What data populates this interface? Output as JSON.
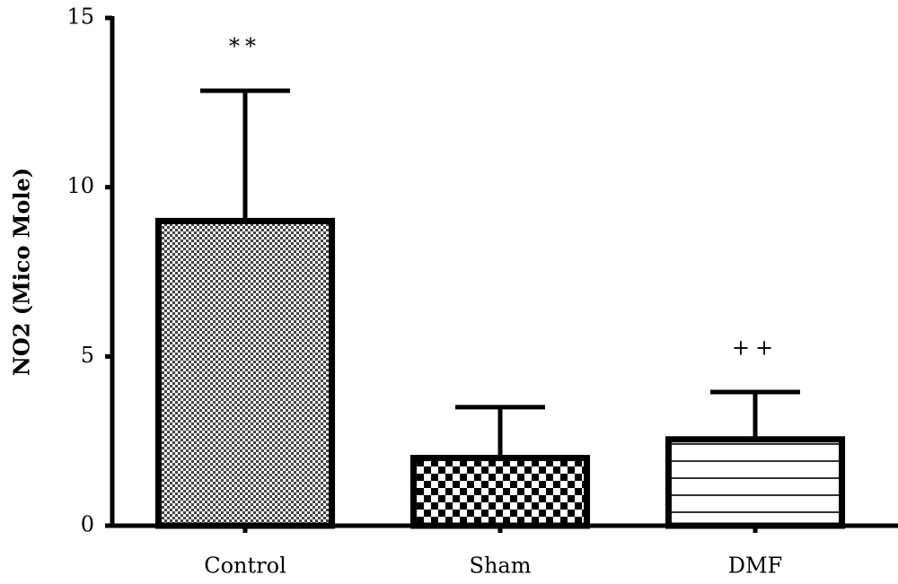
{
  "chart_data": {
    "type": "bar",
    "y_label": "NO2 (Mico Mole)",
    "categories": [
      "Control",
      "Sham",
      "DMF"
    ],
    "values": [
      9.0,
      2.0,
      2.55
    ],
    "errors": [
      3.85,
      1.5,
      1.4
    ],
    "annotations": [
      "**",
      null,
      "++"
    ],
    "color": "#000000",
    "ylim": [
      0,
      15
    ],
    "yticks": [
      0,
      5,
      10,
      15
    ]
  }
}
